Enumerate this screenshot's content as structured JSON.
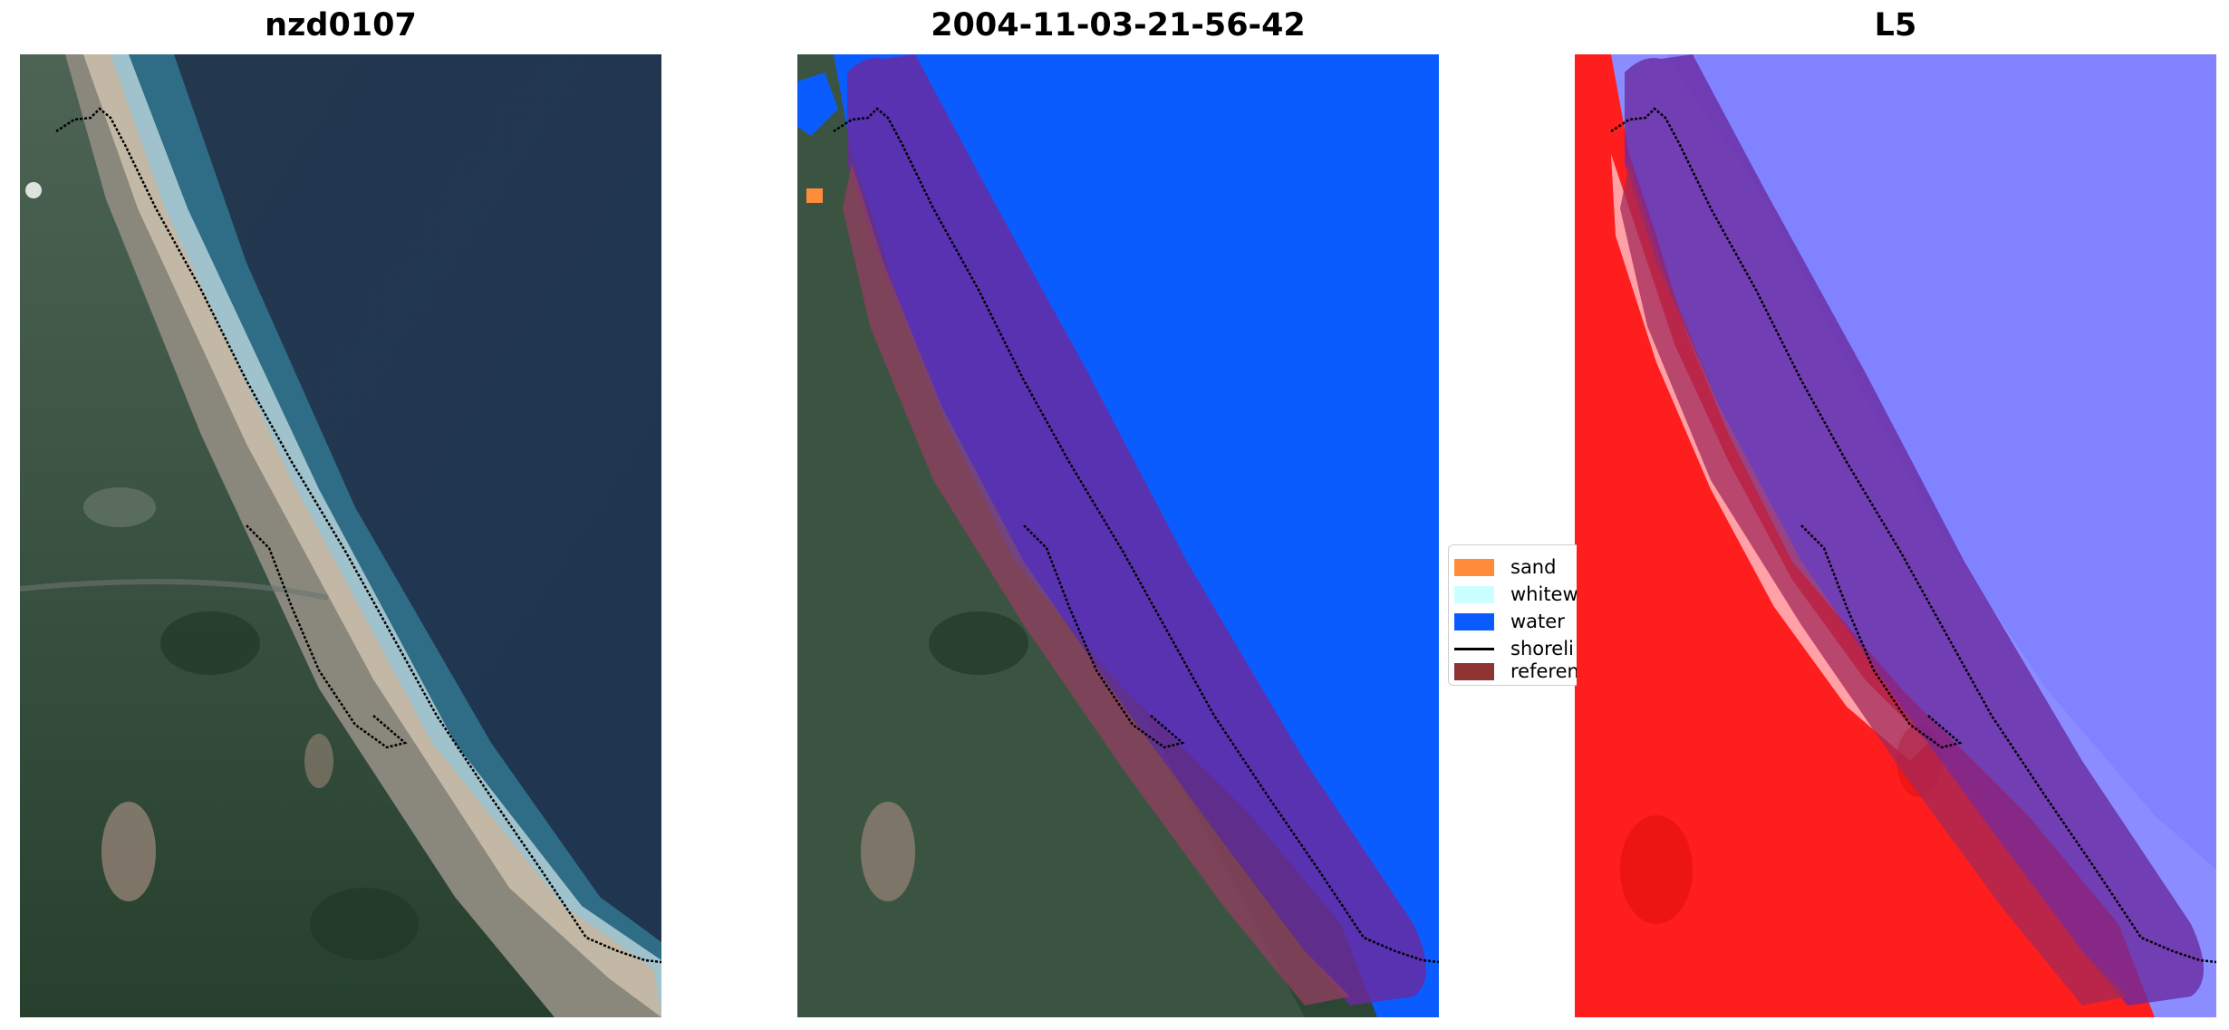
{
  "panels": [
    {
      "title": "nzd0107"
    },
    {
      "title": "2004-11-03-21-56-42"
    },
    {
      "title": "L5"
    }
  ],
  "legend": {
    "items": [
      {
        "label": "sand",
        "color": "#ff8c3a",
        "kind": "patch"
      },
      {
        "label": "whitew",
        "color": "#ccffff",
        "kind": "patch"
      },
      {
        "label": "water",
        "color": "#0a5cff",
        "kind": "patch"
      },
      {
        "label": "shoreli",
        "color": "#000000",
        "kind": "line"
      },
      {
        "label": "referen",
        "color": "#8e3232",
        "kind": "patch"
      }
    ]
  },
  "colors": {
    "ocean": "#223a55",
    "land": "#2f4a38",
    "beach": "#b9ad98",
    "water_class": "#0a5cff",
    "reference_buffer": "#6a2aa0",
    "index_positive": "#ff1e1e",
    "index_negative": "#7d82ff"
  }
}
